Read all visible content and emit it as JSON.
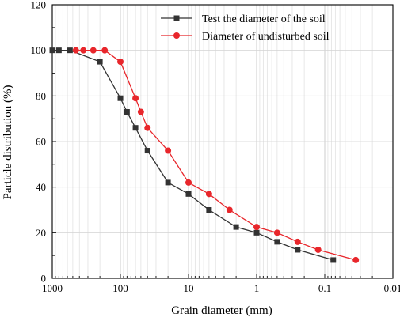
{
  "chart_data": {
    "type": "line",
    "xlabel": "Grain diameter (mm)",
    "ylabel": "Particle distribution (%)",
    "x_scale": "log",
    "x_reversed": true,
    "xlim": [
      1000,
      0.01
    ],
    "ylim": [
      0,
      120
    ],
    "xticks": [
      1000,
      100,
      10,
      1,
      0.1,
      0.01
    ],
    "xtick_labels": [
      "1000",
      "100",
      "10",
      "1",
      "0.1",
      "0.01"
    ],
    "yticks": [
      0,
      20,
      40,
      60,
      80,
      100,
      120
    ],
    "ytick_labels": [
      "0",
      "20",
      "40",
      "60",
      "80",
      "100",
      "120"
    ],
    "grid": true,
    "legend_position": "top-right",
    "series": [
      {
        "name": "Test the diameter of the soil",
        "color": "#333333",
        "marker": "square",
        "x": [
          1000,
          800,
          550,
          200,
          100,
          80,
          60,
          40,
          20,
          10,
          5,
          2,
          1,
          0.5,
          0.25,
          0.075
        ],
        "y": [
          100,
          100,
          100,
          95,
          79,
          73,
          66,
          56,
          42,
          37,
          30,
          22.5,
          20,
          16,
          12.5,
          8
        ]
      },
      {
        "name": "Diameter of undisturbed soil",
        "color": "#e8262b",
        "marker": "circle",
        "x": [
          450,
          350,
          250,
          170,
          100,
          60,
          50,
          40,
          20,
          10,
          5,
          2.5,
          1,
          0.5,
          0.25,
          0.125,
          0.035
        ],
        "y": [
          100,
          100,
          100,
          100,
          95,
          79,
          73,
          66,
          56,
          42,
          37,
          30,
          22.5,
          20,
          16,
          12.5,
          8
        ]
      }
    ]
  }
}
